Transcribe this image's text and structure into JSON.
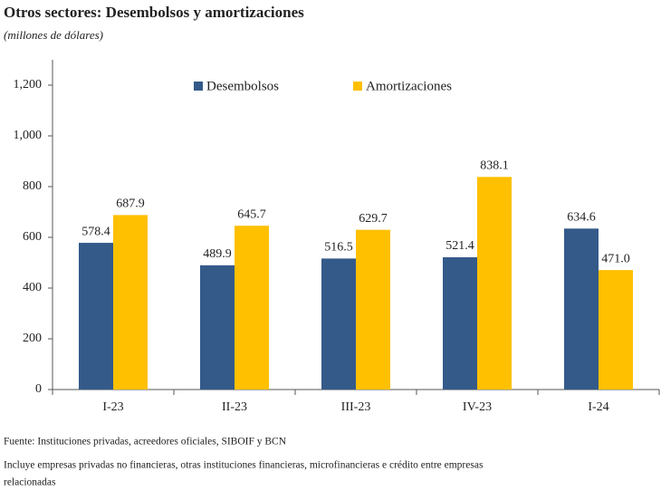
{
  "chart_data": {
    "type": "bar",
    "title": "Otros sectores: Desembolsos y amortizaciones",
    "subtitle": "(millones de dólares)",
    "categories": [
      "I-23",
      "II-23",
      "III-23",
      "IV-23",
      "I-24"
    ],
    "series": [
      {
        "name": "Desembolsos",
        "color": "#345a8a",
        "values": [
          578.4,
          489.9,
          516.5,
          521.4,
          634.6
        ],
        "value_labels": [
          "578.4",
          "489.9",
          "516.5",
          "521.4",
          "634.6"
        ]
      },
      {
        "name": "Amortizaciones",
        "color": "#ffc000",
        "values": [
          687.9,
          645.7,
          629.7,
          838.1,
          471.0
        ],
        "value_labels": [
          "687.9",
          "645.7",
          "629.7",
          "838.1",
          "471.0"
        ]
      }
    ],
    "ylim": [
      0,
      1300
    ],
    "yticks": [
      0,
      200,
      400,
      600,
      800,
      {
        "value": 1000,
        "label": "1,000"
      },
      {
        "value": 1200,
        "label": "1,200"
      }
    ],
    "legend": "top",
    "notes": [
      "Fuente:  Instituciones privadas, acreedores oficiales, SIBOIF y BCN",
      "Incluye empresas privadas no financieras, otras instituciones financieras, microfinancieras e crédito entre empresas",
      "relacionadas"
    ]
  }
}
